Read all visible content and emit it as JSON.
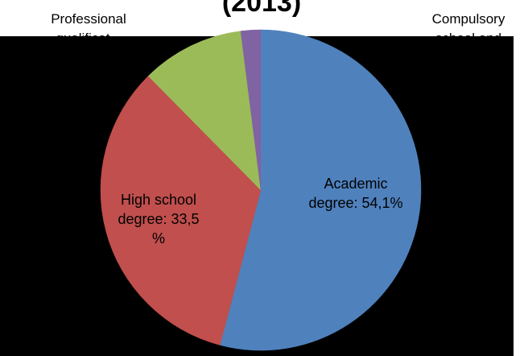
{
  "chart_data": {
    "type": "pie",
    "title": "(2013)",
    "slices": [
      {
        "label": "Academic degree",
        "value": 54.1,
        "color": "#4f81bd",
        "label_text": [
          "Academic",
          "degree: 54,1%"
        ]
      },
      {
        "label": "High school degree",
        "value": 33.5,
        "color": "#c0504d",
        "label_text": [
          "High school",
          "degree: 33,5",
          "%"
        ]
      },
      {
        "label": "Professional qualification",
        "value": 10.4,
        "color": "#9bbb59",
        "label_text": [
          "Professional",
          "qualificat..."
        ]
      },
      {
        "label": "Compulsory school and others",
        "value": 2.0,
        "color": "#8064a2",
        "label_text": [
          "Compulsory",
          "school and",
          "%"
        ]
      }
    ],
    "legend": "none"
  }
}
